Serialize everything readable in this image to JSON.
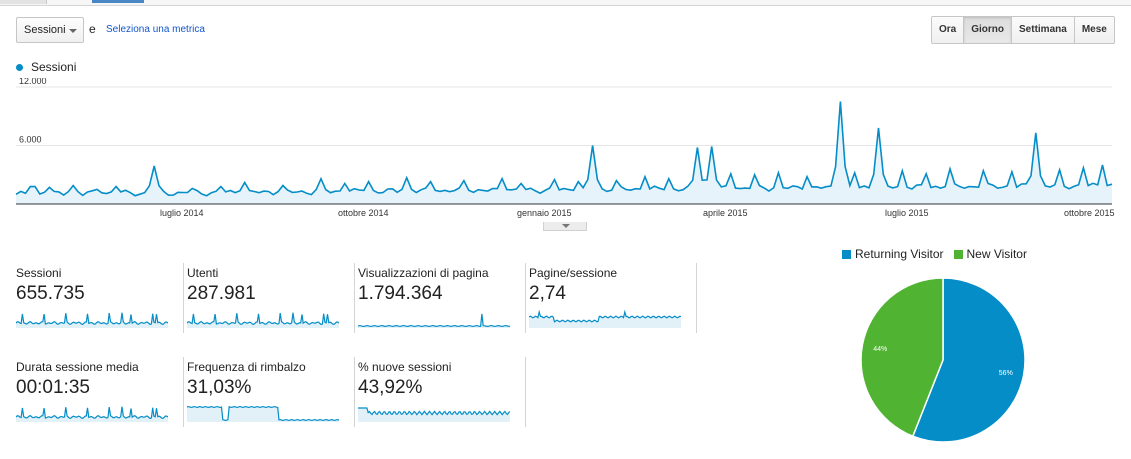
{
  "toolbar": {
    "metric_select": "Sessioni",
    "conjunction": "e",
    "select_metric_link": "Seleziona una metrica",
    "granularity": [
      "Ora",
      "Giorno",
      "Settimana",
      "Mese"
    ],
    "active_granularity": "Giorno"
  },
  "legend": {
    "series_name": "Sessioni",
    "color": "#058dc7"
  },
  "chart_data": [
    {
      "type": "area",
      "series": [
        {
          "name": "Sessioni",
          "color": "#058dc7"
        }
      ],
      "y_tick_labels": [
        "12.000",
        "6.000"
      ],
      "y_ticks": [
        12000,
        6000
      ],
      "ylim": [
        0,
        12000
      ],
      "x_tick_labels": [
        "luglio 2014",
        "ottobre 2014",
        "gennaio 2015",
        "aprile 2015",
        "luglio 2015",
        "ottobre 2015"
      ],
      "baseline": 1000,
      "spikes": [
        [
          3.5,
          2200
        ],
        [
          7,
          1700
        ],
        [
          12,
          1900
        ],
        [
          17,
          1500
        ],
        [
          21,
          1800
        ],
        [
          29,
          3900
        ],
        [
          37,
          1600
        ],
        [
          43,
          1800
        ],
        [
          48,
          2200
        ],
        [
          56,
          1900
        ],
        [
          64,
          2600
        ],
        [
          69,
          2100
        ],
        [
          74,
          2300
        ],
        [
          82,
          2700
        ],
        [
          87,
          2300
        ],
        [
          94,
          2400
        ],
        [
          102,
          2600
        ],
        [
          106,
          2100
        ],
        [
          113,
          2500
        ],
        [
          118,
          2300
        ],
        [
          121,
          6000
        ],
        [
          126,
          2400
        ],
        [
          132,
          2800
        ],
        [
          137,
          2600
        ],
        [
          143,
          5800
        ],
        [
          146,
          5900
        ],
        [
          150,
          3100
        ],
        [
          155,
          3000
        ],
        [
          160,
          3200
        ],
        [
          166,
          2800
        ],
        [
          173,
          10500
        ],
        [
          176,
          3200
        ],
        [
          181,
          7800
        ],
        [
          186,
          3400
        ],
        [
          191,
          3100
        ],
        [
          196,
          3600
        ],
        [
          203,
          3400
        ],
        [
          209,
          3300
        ],
        [
          214,
          7300
        ],
        [
          219,
          3500
        ],
        [
          224,
          3700
        ],
        [
          228,
          4000
        ]
      ],
      "grid": true
    },
    {
      "type": "pie",
      "series": [
        {
          "name": "Returning Visitor",
          "value": 56,
          "color": "#058dc7",
          "label": "56%"
        },
        {
          "name": "New Visitor",
          "value": 44,
          "color": "#50b432",
          "label": "44%"
        }
      ]
    }
  ],
  "scorecards": [
    {
      "label": "Sessioni",
      "value": "655.735",
      "spark": "flat-spiky"
    },
    {
      "label": "Utenti",
      "value": "287.981",
      "spark": "flat-spiky"
    },
    {
      "label": "Visualizzazioni di pagina",
      "value": "1.794.364",
      "spark": "flat-low"
    },
    {
      "label": "Pagine/sessione",
      "value": "2,74",
      "spark": "step-up"
    },
    {
      "label": "Durata sessione media",
      "value": "00:01:35",
      "spark": "flat-spiky"
    },
    {
      "label": "Frequenza di rimbalzo",
      "value": "31,03%",
      "spark": "bounce"
    },
    {
      "label": "% nuove sessioni",
      "value": "43,92%",
      "spark": "flat-mid"
    }
  ]
}
